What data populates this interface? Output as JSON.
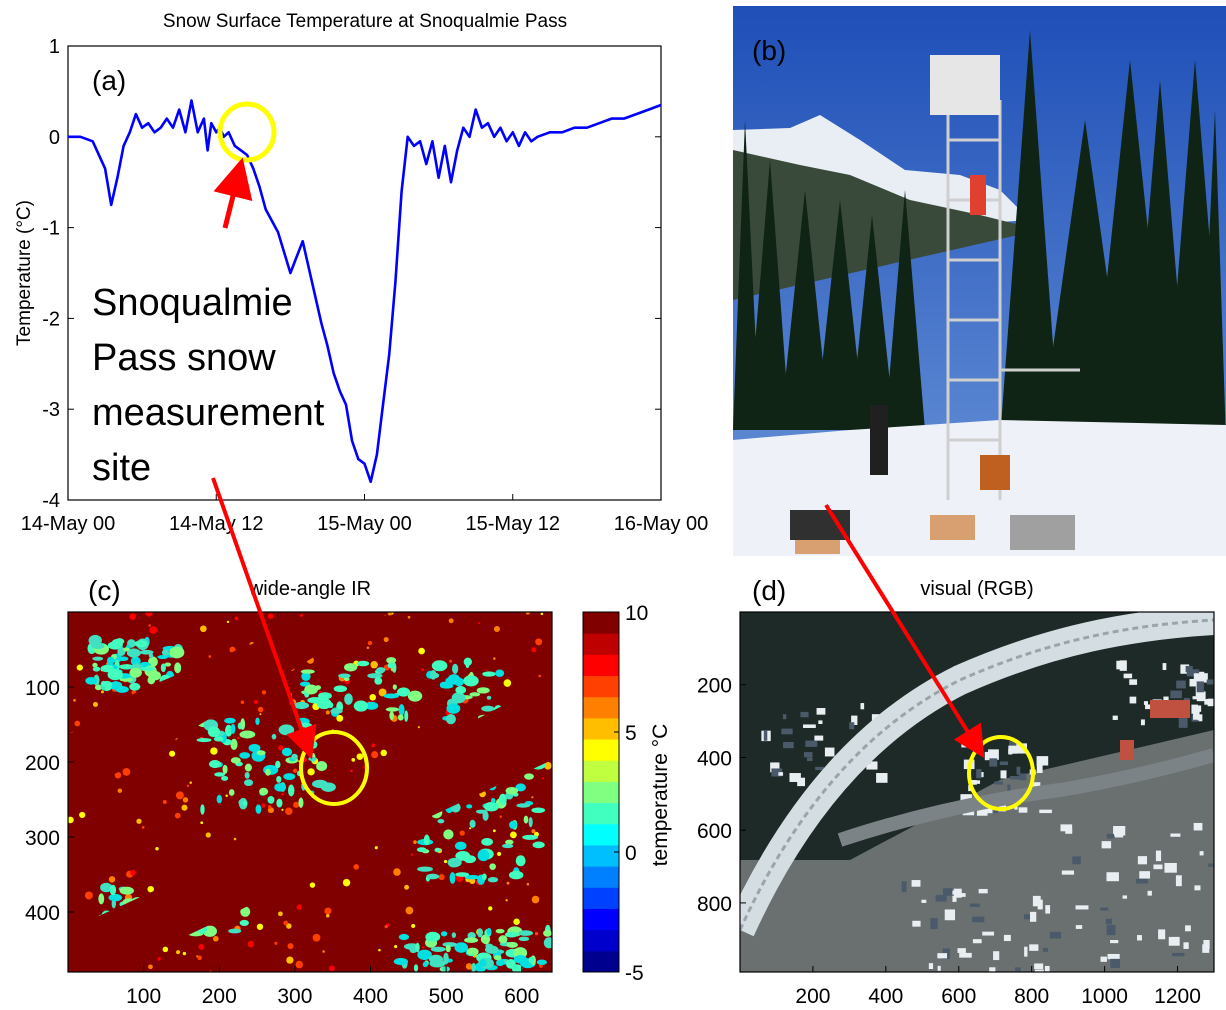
{
  "panel_labels": {
    "a": "(a)",
    "b": "(b)",
    "c": "(c)",
    "d": "(d)"
  },
  "annotation": {
    "line1": "Snoqualmie",
    "line2": "Pass snow",
    "line3": "measurement",
    "line4": "site"
  },
  "colors": {
    "series_line": "#0000ff",
    "highlight_circle": "#ffff00",
    "arrow": "#ff0000",
    "ir_background": "#800000"
  },
  "chart_data": [
    {
      "type": "line",
      "title": "Snow Surface Temperature at Snoqualmie Pass",
      "xlabel": "",
      "ylabel": "Temperature (°C)",
      "x_tick_labels": [
        "14-May 00",
        "14-May 12",
        "15-May 00",
        "15-May 12",
        "16-May 00"
      ],
      "x_tick_hours": [
        0,
        12,
        24,
        36,
        48
      ],
      "xlim_hours": [
        0,
        48
      ],
      "y_ticks": [
        1,
        0,
        -1,
        -2,
        -3,
        -4
      ],
      "ylim": [
        -4,
        1
      ],
      "grid": false,
      "series": [
        {
          "x_hours": [
            0,
            1,
            2,
            3,
            3.5,
            4,
            4.5,
            5,
            5.5,
            6,
            6.5,
            7,
            7.5,
            8,
            8.5,
            9,
            9.5,
            10,
            10.5,
            11,
            11.3,
            11.6,
            12,
            12.3,
            12.6,
            13,
            13.5,
            14,
            14.5,
            15,
            15.5,
            16,
            17,
            18,
            19,
            20,
            20.5,
            21,
            21.5,
            22,
            22.5,
            23,
            23.5,
            24,
            24.5,
            25,
            25.5,
            26,
            26.5,
            27,
            27.5,
            28,
            28.5,
            29,
            29.5,
            30,
            30.5,
            31,
            31.5,
            32,
            32.5,
            33,
            33.5,
            34,
            34.5,
            35,
            35.5,
            36,
            36.5,
            37,
            37.5,
            38,
            39,
            40,
            41,
            42,
            43,
            44,
            45,
            46,
            47,
            48
          ],
          "values": [
            0,
            0,
            -0.05,
            -0.35,
            -0.75,
            -0.45,
            -0.1,
            0.05,
            0.25,
            0.1,
            0.15,
            0.05,
            0.1,
            0.2,
            0.1,
            0.3,
            0.05,
            0.4,
            0.05,
            0.2,
            -0.15,
            0.15,
            0.05,
            0.1,
            0,
            0.05,
            -0.1,
            -0.15,
            -0.2,
            -0.35,
            -0.55,
            -0.8,
            -1.05,
            -1.5,
            -1.15,
            -1.75,
            -2.05,
            -2.3,
            -2.6,
            -2.8,
            -2.95,
            -3.35,
            -3.55,
            -3.6,
            -3.8,
            -3.5,
            -2.95,
            -2.4,
            -1.6,
            -0.6,
            0,
            -0.1,
            -0.05,
            -0.3,
            -0.05,
            -0.45,
            -0.1,
            -0.5,
            -0.15,
            0.1,
            0,
            0.3,
            0.1,
            0.15,
            0,
            0.1,
            -0.05,
            0.05,
            -0.1,
            0.05,
            -0.05,
            0,
            0.05,
            0.05,
            0.1,
            0.1,
            0.15,
            0.2,
            0.2,
            0.25,
            0.3,
            0.35
          ]
        }
      ]
    },
    {
      "type": "heatmap",
      "title": "wide-angle IR",
      "x_ticks": [
        100,
        200,
        300,
        400,
        500,
        600
      ],
      "y_ticks": [
        100,
        200,
        300,
        400
      ],
      "xlim": [
        0,
        640
      ],
      "ylim": [
        0,
        480
      ],
      "colorbar": {
        "label": "temperature °C",
        "ticks": [
          10,
          5,
          0,
          -5
        ],
        "range": [
          -5,
          10
        ]
      }
    },
    {
      "type": "heatmap",
      "title": "visual (RGB)",
      "x_ticks": [
        200,
        400,
        600,
        800,
        1000,
        1200
      ],
      "y_ticks": [
        200,
        400,
        600,
        800
      ],
      "xlim": [
        0,
        1300
      ],
      "ylim": [
        0,
        990
      ]
    }
  ]
}
